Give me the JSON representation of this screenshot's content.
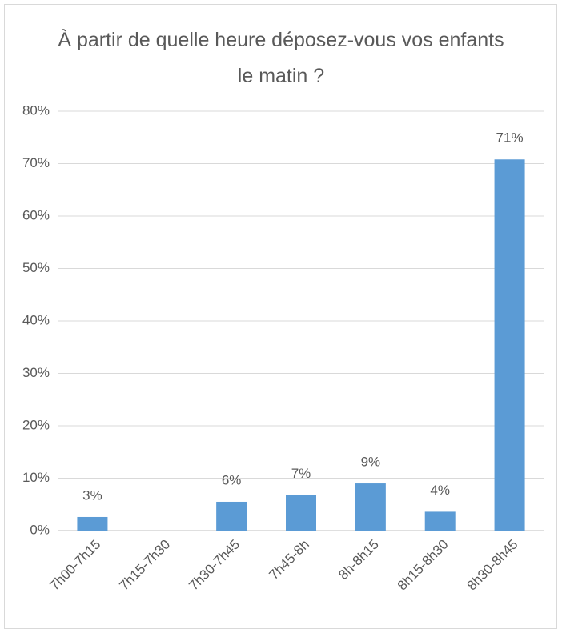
{
  "chart_data": {
    "type": "bar",
    "title": "À partir de quelle heure déposez-vous vos enfants le matin ?",
    "categories": [
      "7h00-7h15",
      "7h15-7h30",
      "7h30-7h45",
      "7h45-8h",
      "8h-8h15",
      "8h15-8h30",
      "8h30-8h45"
    ],
    "values": [
      2.6,
      0,
      5.5,
      6.8,
      9.0,
      3.6,
      70.8
    ],
    "value_labels": [
      "3%",
      null,
      "6%",
      "7%",
      "9%",
      "4%",
      "71%"
    ],
    "color": "#5b9bd5",
    "ylim": [
      0,
      80
    ],
    "yticks": [
      {
        "value": 0,
        "label": "0%"
      },
      {
        "value": 10,
        "label": "10%"
      },
      {
        "value": 20,
        "label": "20%"
      },
      {
        "value": 30,
        "label": "30%"
      },
      {
        "value": 40,
        "label": "40%"
      },
      {
        "value": 50,
        "label": "50%"
      },
      {
        "value": 60,
        "label": "60%"
      },
      {
        "value": 70,
        "label": "70%"
      },
      {
        "value": 80,
        "label": "80%"
      }
    ],
    "grid": true
  }
}
